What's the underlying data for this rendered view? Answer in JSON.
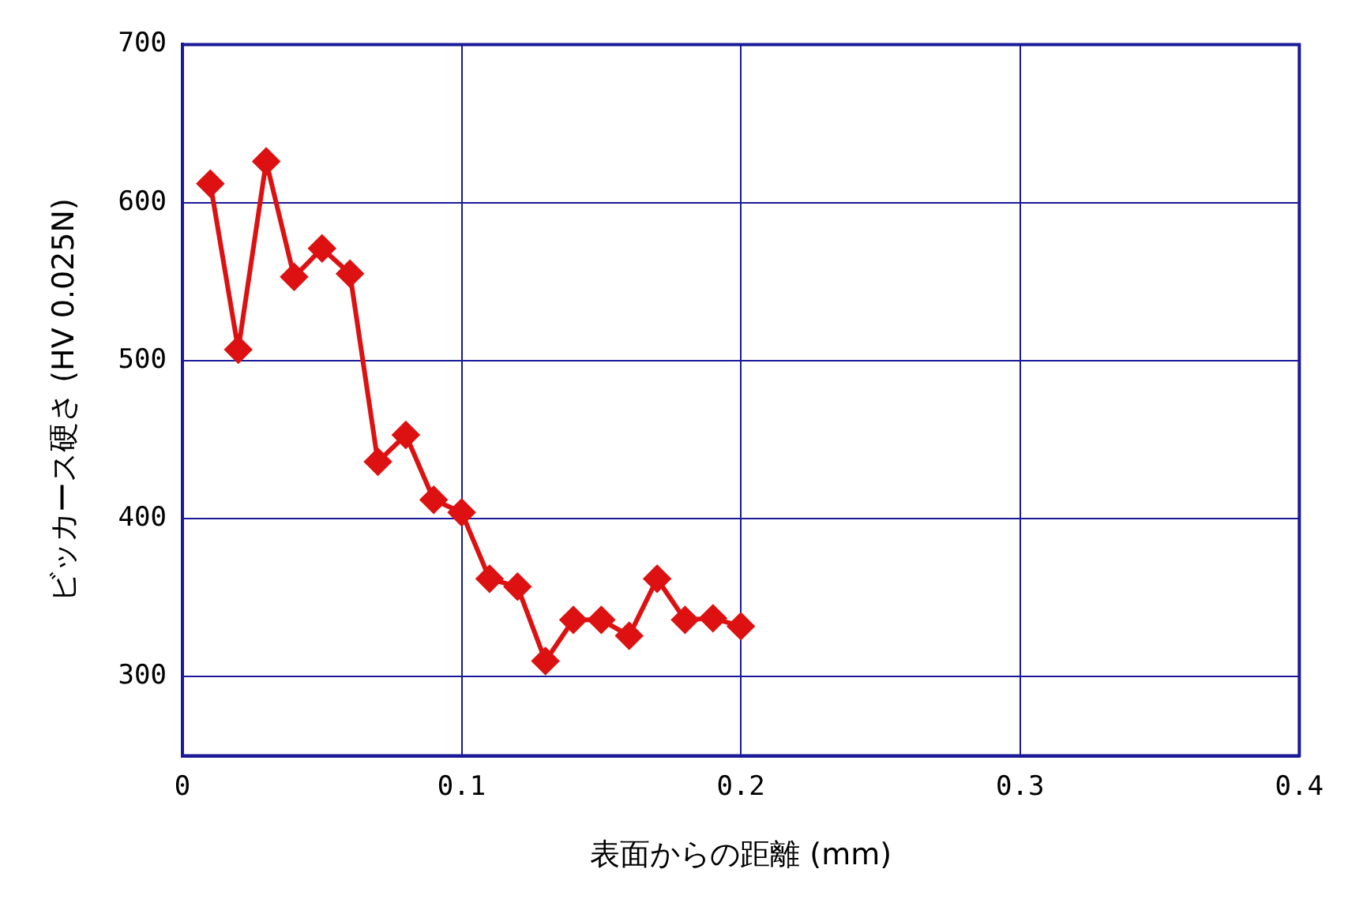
{
  "chart_data": {
    "type": "line",
    "xlabel": "表面からの距離 (mm)",
    "ylabel": "ビッカース硬さ (HV 0.025N)",
    "x": [
      0.01,
      0.02,
      0.03,
      0.04,
      0.05,
      0.06,
      0.07,
      0.08,
      0.09,
      0.1,
      0.11,
      0.12,
      0.13,
      0.14,
      0.15,
      0.16,
      0.17,
      0.18,
      0.19,
      0.2
    ],
    "series": [
      {
        "color": "#dd1111",
        "values": [
          612,
          507,
          626,
          553,
          571,
          555,
          436,
          453,
          412,
          404,
          362,
          357,
          310,
          336,
          336,
          326,
          362,
          336,
          337,
          332
        ]
      }
    ],
    "xlim": [
      0,
      0.4
    ],
    "xticks": [
      {
        "value": 0,
        "label": "0"
      },
      0.1,
      0.2,
      0.3,
      0.4
    ],
    "ylim": [
      250,
      700
    ],
    "yticks": [
      300,
      400,
      500,
      600,
      700
    ],
    "grid": true,
    "marker": "diamond",
    "line_style": "solid",
    "legend": false
  }
}
